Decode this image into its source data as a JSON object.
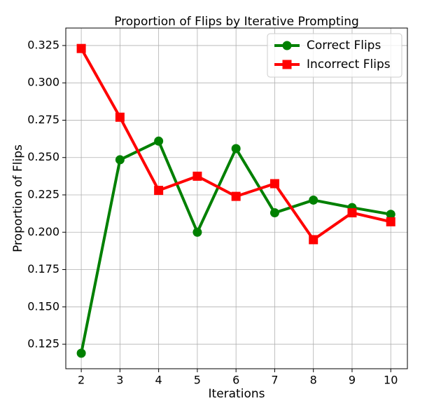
{
  "chart_data": {
    "type": "line",
    "title": "Proportion of Flips by Iterative Prompting",
    "x_label": "Iterations",
    "y_label": "Proportion of Flips",
    "x": [
      2,
      3,
      4,
      5,
      6,
      7,
      8,
      9,
      10
    ],
    "series": [
      {
        "name": "Correct Flips",
        "color": "#008000",
        "marker": "circle",
        "values": [
          0.119,
          0.2485,
          0.261,
          0.2,
          0.256,
          0.213,
          0.2215,
          0.2165,
          0.212
        ]
      },
      {
        "name": "Incorrect Flips",
        "color": "#ff0000",
        "marker": "square",
        "values": [
          0.323,
          0.277,
          0.228,
          0.2375,
          0.224,
          0.2325,
          0.195,
          0.213,
          0.207
        ]
      }
    ],
    "xlim": [
      1.6,
      10.43
    ],
    "xticks": [
      2,
      3,
      4,
      5,
      6,
      7,
      8,
      9,
      10
    ],
    "ylim": [
      0.1086,
      0.3367
    ],
    "yticks": [
      0.125,
      {
        "value": 0.15,
        "label": "0.150"
      },
      0.175,
      {
        "value": 0.2,
        "label": "0.200"
      },
      0.225,
      {
        "value": 0.25,
        "label": "0.250"
      },
      0.275,
      {
        "value": 0.3,
        "label": "0.300"
      },
      0.325
    ],
    "grid": true,
    "legend": "upper right"
  }
}
